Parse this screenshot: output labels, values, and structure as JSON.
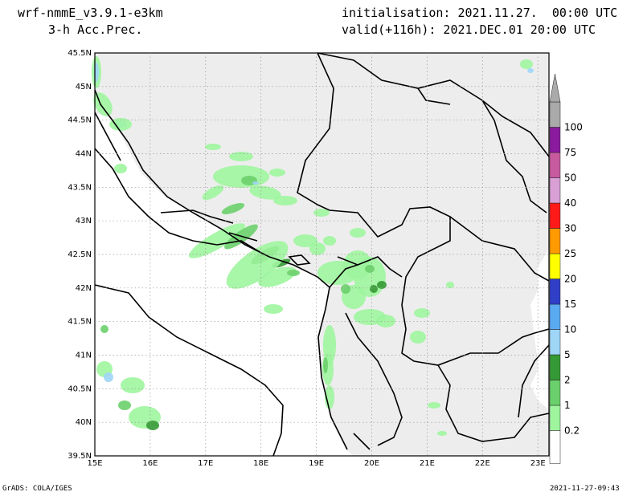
{
  "header": {
    "model": "wrf-nmmE_v3.9.1-e3km",
    "field": "3-h Acc.Prec.",
    "init": "initialisation: 2021.11.27.  00:00 UTC",
    "valid": "valid(+116h): 2021.DEC.01 20:00 UTC"
  },
  "axes": {
    "lat_labels": [
      "45.5N",
      "45N",
      "44.5N",
      "44N",
      "43.5N",
      "43N",
      "42.5N",
      "42N",
      "41.5N",
      "41N",
      "40.5N",
      "40N",
      "39.5N"
    ],
    "lat_values": [
      45.5,
      45,
      44.5,
      44,
      43.5,
      43,
      42.5,
      42,
      41.5,
      41,
      40.5,
      40,
      39.5
    ],
    "lon_labels": [
      "15E",
      "16E",
      "17E",
      "18E",
      "19E",
      "20E",
      "21E",
      "22E",
      "23E"
    ],
    "lon_values": [
      15,
      16,
      17,
      18,
      19,
      20,
      21,
      22,
      23
    ],
    "lat_range": [
      39.5,
      45.5
    ],
    "lon_range": [
      15,
      23.2
    ]
  },
  "legend": {
    "labels": [
      "0.2",
      "1",
      "2",
      "5",
      "10",
      "15",
      "20",
      "25",
      "30",
      "40",
      "50",
      "75",
      "100"
    ],
    "colors": [
      "#ffffff",
      "#9ef59e",
      "#6bd06b",
      "#359a35",
      "#9fd5f7",
      "#5aaaf2",
      "#2f3fc8",
      "#ffff00",
      "#ff9a00",
      "#ff1a1a",
      "#d8a0d4",
      "#c85aa0",
      "#8a1a9e",
      "#aaaaaa"
    ]
  },
  "footer": {
    "left": "GrADS: COLA/IGES",
    "right": "2021-11-27-09:43"
  },
  "colors": {
    "land": "#ededed",
    "sea": "#ffffff",
    "grid": "#999999"
  }
}
